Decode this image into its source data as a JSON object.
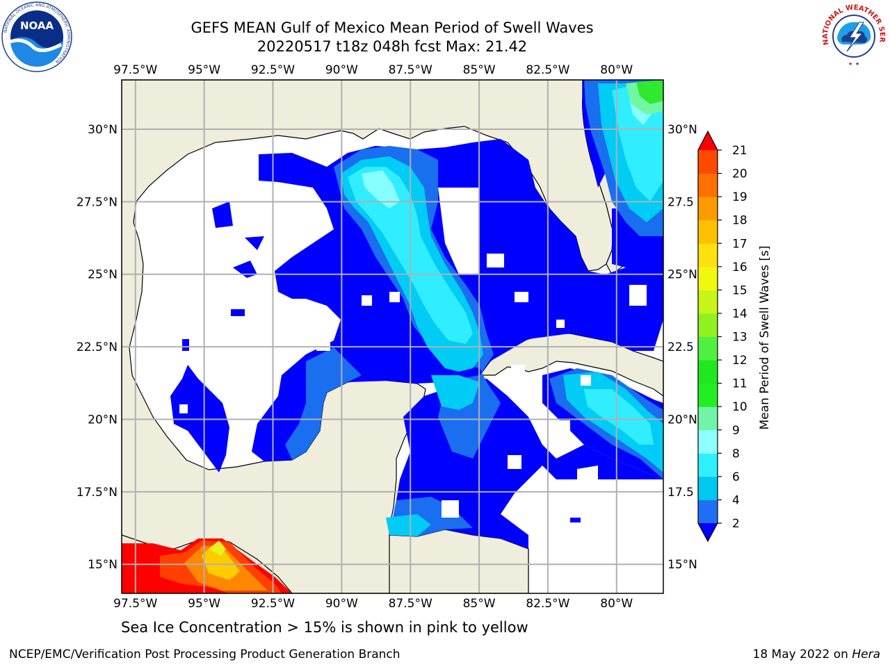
{
  "title": {
    "line1": "GEFS MEAN Gulf of Mexico Mean Period of Swell Waves",
    "line2": "20220517 t18z 048h fcst   Max: 21.42"
  },
  "caption": "Sea Ice Concentration > 15% is shown in pink to yellow",
  "footer": {
    "left": "NCEP/EMC/Verification Post Processing Product Generation Branch",
    "right_date": "18 May 2022 on ",
    "right_host": "Hera"
  },
  "logos": {
    "noaa": "noaa-logo",
    "nws": "national-weather-service-logo",
    "noaa_text": "NOAA",
    "noaa_ring": "NATIONAL OCEANIC AND ATMOSPHERIC ADMINISTRATION",
    "noaa_ring_bottom": "U.S. DEPARTMENT OF COMMERCE",
    "nws_ring": "NATIONAL WEATHER SERVICE"
  },
  "map": {
    "lon_labels": [
      "97.5°W",
      "95°W",
      "92.5°W",
      "90°W",
      "87.5°W",
      "85°W",
      "82.5°W",
      "80°W"
    ],
    "lon_values": [
      -97.5,
      -95,
      -92.5,
      -90,
      -87.5,
      -85,
      -82.5,
      -80
    ],
    "lat_labels_left": [
      "30°N",
      "27.5°N",
      "25°N",
      "22.5°N",
      "20°N",
      "17.5°N",
      "15°N"
    ],
    "lat_labels_right": [
      "30°N",
      "27.5",
      "25°N",
      "22.5",
      "20°N",
      "17.5",
      "15°N"
    ],
    "lat_values": [
      30,
      27.5,
      25,
      22.5,
      20,
      17.5,
      15
    ],
    "lon_range": [
      -98,
      -78.3
    ],
    "lat_range": [
      14,
      31.7
    ],
    "land_color": "#efeddb",
    "grid_color": "#b0b0b0",
    "grid": true
  },
  "colorbar": {
    "label": "Mean Period of Swell Waves [s]",
    "ticks": [
      "2",
      "4",
      "6",
      "8",
      "9",
      "10",
      "11",
      "12",
      "13",
      "14",
      "15",
      "16",
      "17",
      "18",
      "19",
      "20",
      "21"
    ],
    "colors": [
      "#0000ff",
      "#1e6ff5",
      "#00c8f0",
      "#2ef0ff",
      "#8effff",
      "#70f5a8",
      "#22ee22",
      "#20e81e",
      "#50f040",
      "#90f020",
      "#c8f418",
      "#f0f810",
      "#ffe010",
      "#ffc000",
      "#ff9a00",
      "#ff7000",
      "#ff4800",
      "#ff1800"
    ],
    "under_color": "#0000ff",
    "over_color": "#ff0000"
  },
  "fields": {
    "swell_colors": {
      "p2": "#0000ff",
      "p4": "#1a6ef0",
      "p6": "#00ccf5",
      "p8": "#30eeff",
      "p9": "#88ffff",
      "p10": "#70f8a0",
      "p11": "#30e830",
      "hot1": "#ff0000",
      "hot2": "#ff4000",
      "hot3": "#ff8800",
      "hot4": "#ffcc00",
      "hot5": "#e8f020"
    }
  }
}
